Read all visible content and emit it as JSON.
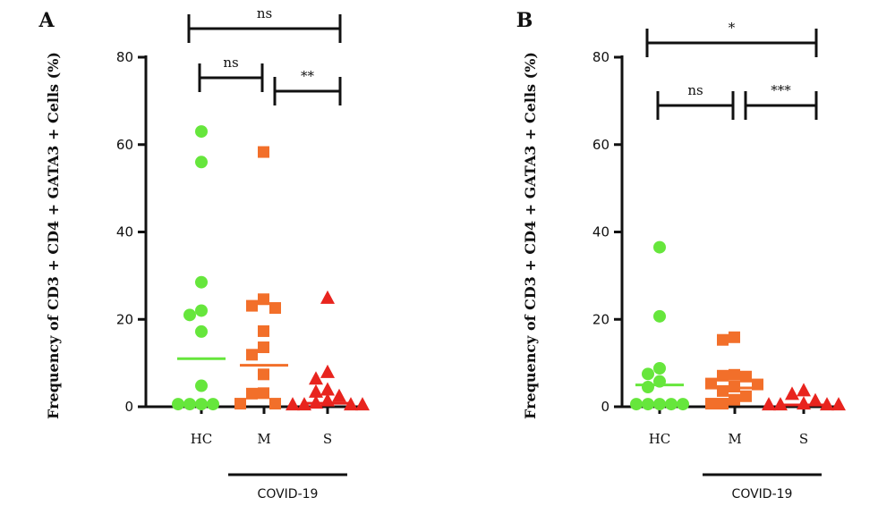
{
  "chart_data": [
    {
      "type": "scatter",
      "panel_label": "A",
      "ylabel": "Frequency of CD3 + CD4 + GATA3 + Cells (%)",
      "ylim": [
        0,
        80
      ],
      "yticks": [
        0,
        20,
        40,
        60,
        80
      ],
      "categories": [
        "HC",
        "M",
        "S"
      ],
      "group_label": "COVID-19",
      "group_spans": [
        "M",
        "S"
      ],
      "series": [
        {
          "category": "HC",
          "marker": "circle",
          "color": "#66e63c",
          "values": [
            63,
            56,
            28.5,
            22,
            21,
            17.2,
            4.8,
            0.6,
            0.6,
            0.6,
            0.6
          ],
          "mean": 11
        },
        {
          "category": "M",
          "marker": "square",
          "color": "#f26f2a",
          "values": [
            58.2,
            24.5,
            23,
            22.5,
            17.2,
            13.5,
            11.8,
            7.3,
            3,
            2.9,
            0.6,
            0.6
          ],
          "mean": 9.5
        },
        {
          "category": "S",
          "marker": "triangle",
          "color": "#e8241e",
          "values": [
            25,
            8,
            6.5,
            4,
            3.5,
            2.5,
            1.5,
            1,
            0.6,
            0.6,
            0.6,
            0.6
          ],
          "mean": 0.8
        }
      ],
      "significance": [
        {
          "from": "HC",
          "to": "S",
          "label": "ns"
        },
        {
          "from": "HC",
          "to": "M",
          "label": "ns"
        },
        {
          "from": "M",
          "to": "S",
          "label": "**"
        }
      ]
    },
    {
      "type": "scatter",
      "panel_label": "B",
      "ylabel": "Frequency of CD3 + CD4 + GATA3 + Cells (%)",
      "ylim": [
        0,
        80
      ],
      "yticks": [
        0,
        20,
        40,
        60,
        80
      ],
      "categories": [
        "HC",
        "M",
        "S"
      ],
      "group_label": "COVID-19",
      "group_spans": [
        "M",
        "S"
      ],
      "series": [
        {
          "category": "HC",
          "marker": "circle",
          "color": "#66e63c",
          "values": [
            36.5,
            20.7,
            8.8,
            7.5,
            5.8,
            4.5,
            0.6,
            0.6,
            0.6,
            0.6,
            0.6
          ],
          "mean": 5
        },
        {
          "category": "M",
          "marker": "square",
          "color": "#f26f2a",
          "values": [
            15.8,
            15.2,
            7.2,
            7,
            6.8,
            5.2,
            5,
            4.5,
            3.5,
            2.3,
            1.5,
            0.6,
            0.6
          ],
          "mean": 4.3
        },
        {
          "category": "S",
          "marker": "triangle",
          "color": "#e8241e",
          "values": [
            3.8,
            3,
            1.5,
            0.8,
            0.6,
            0.6,
            0.6,
            0.6
          ],
          "mean": 0.4
        }
      ],
      "significance": [
        {
          "from": "HC",
          "to": "S",
          "label": "*"
        },
        {
          "from": "HC",
          "to": "M",
          "label": "ns"
        },
        {
          "from": "M",
          "to": "S",
          "label": "***"
        }
      ]
    }
  ]
}
